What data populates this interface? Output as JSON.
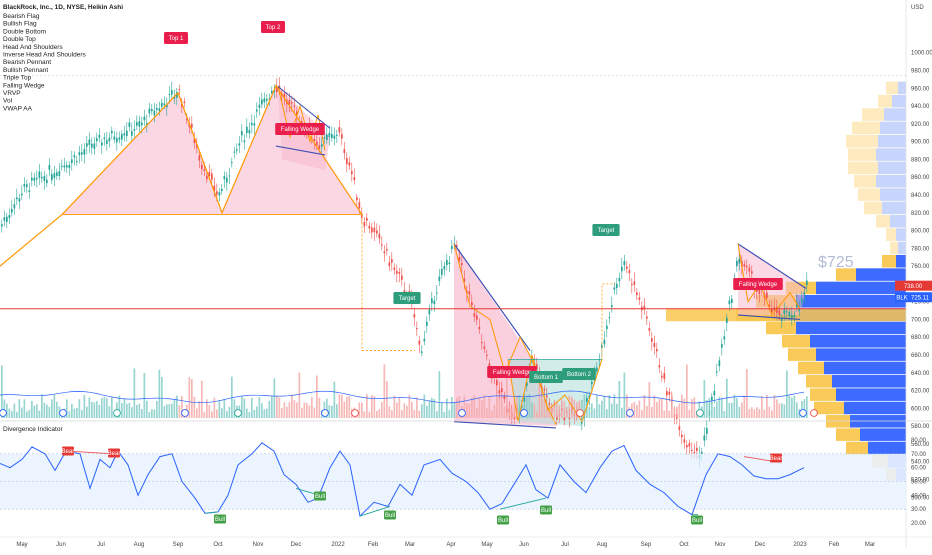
{
  "header": {
    "symbol_line": "BlackRock, Inc., 1D, NYSE, Heikin Ashi",
    "currency": "USD"
  },
  "legend": [
    "Bearish Flag",
    "Bullish Flag",
    "Double Bottom",
    "Double Top",
    "Head And Shoulders",
    "Inverse Head And Shoulders",
    "Bearish Pennant",
    "Bullish Pennant",
    "Triple Top",
    "Falling Wedge",
    "VRVP",
    "Vol",
    "VWAP AA"
  ],
  "price_axis": {
    "ticks": [
      "980.00",
      "960.00",
      "940.00",
      "920.00",
      "900.00",
      "880.00",
      "860.00",
      "840.00",
      "820.00",
      "800.00",
      "780.00",
      "760.00",
      "740.00",
      "720.00",
      "700.00",
      "680.00",
      "660.00",
      "640.00",
      "620.00",
      "600.00",
      "580.00",
      "560.00",
      "540.00",
      "520.00",
      "500.00"
    ],
    "top_label": "1000.00"
  },
  "badges": {
    "price1": "738.00",
    "symbol": "BLK",
    "price2": "725.11"
  },
  "watermark_price": "$725",
  "pattern_tags": [
    {
      "text": "Top 1",
      "kind": "red"
    },
    {
      "text": "Top 2",
      "kind": "red"
    },
    {
      "text": "Falling Wedge",
      "kind": "red"
    },
    {
      "text": "Target",
      "kind": "green"
    },
    {
      "text": "Falling Wedge",
      "kind": "red"
    },
    {
      "text": "Bottom 1",
      "kind": "green"
    },
    {
      "text": "Bottom 2",
      "kind": "green"
    },
    {
      "text": "Target",
      "kind": "green"
    },
    {
      "text": "Falling Wedge",
      "kind": "red"
    }
  ],
  "indicator": {
    "title": "Divergence Indicator",
    "ticks": [
      "80.00",
      "70.00",
      "60.00",
      "50.00",
      "40.00",
      "30.00",
      "20.00"
    ],
    "bear_tag": "Bear",
    "bull_tag": "Bull"
  },
  "time_axis": [
    "May",
    "Jun",
    "Jul",
    "Aug",
    "Sep",
    "Oct",
    "Nov",
    "Dec",
    "2022",
    "Feb",
    "Mar",
    "Apr",
    "May",
    "Jun",
    "Jul",
    "Aug",
    "Sep",
    "Oct",
    "Nov",
    "Dec",
    "2023",
    "Feb",
    "Mar"
  ],
  "colors": {
    "up": "#26a69a",
    "down": "#ef5350",
    "pattern_line": "#ff9800",
    "wedge_line": "#3f51b5",
    "rsi_line": "#2962ff",
    "price_line": "#e53935",
    "vrvp_up": "#2962ff",
    "vrvp_down": "#ffc107"
  },
  "chart_data": {
    "type": "line",
    "title": "BlackRock, Inc., 1D, NYSE, Heikin Ashi",
    "x": [
      "May",
      "Jun",
      "Jul",
      "Aug",
      "Sep",
      "Oct",
      "Nov",
      "Dec",
      "2022",
      "Feb",
      "Mar",
      "Apr",
      "May",
      "Jun",
      "Jul",
      "Aug",
      "Sep",
      "Oct",
      "Nov",
      "Dec",
      "2023"
    ],
    "series": [
      {
        "name": "BLK",
        "values": [
          800,
          845,
          875,
          900,
          955,
          855,
          960,
          900,
          860,
          780,
          665,
          785,
          610,
          640,
          590,
          760,
          660,
          510,
          770,
          725,
          738
        ]
      }
    ],
    "ylabel": "USD",
    "ylim": [
      500,
      1000
    ],
    "current_price": 725.11
  }
}
